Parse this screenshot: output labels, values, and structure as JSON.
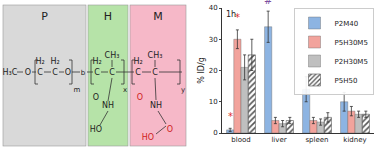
{
  "diagram": {
    "boxes": [
      {
        "label": "P",
        "color": "#d9d9d9"
      },
      {
        "label": "H",
        "color": "#b6e3a8"
      },
      {
        "label": "M",
        "color": "#f6b8c8"
      }
    ],
    "texts": [
      "H₃C",
      "O",
      "H₂",
      "C",
      "H₂",
      "C",
      "O",
      "m",
      "b",
      "H₂",
      "C",
      "CH₃",
      "C",
      "x",
      "O",
      "NH",
      "HO",
      "H₂",
      "C",
      "CH₃",
      "C",
      "y",
      "O",
      "NH",
      "O",
      "HO"
    ]
  },
  "chart_data": {
    "type": "bar",
    "panel_label": "1h",
    "ylabel": "% ID/g",
    "categories": [
      "blood",
      "liver",
      "spleen",
      "kidney"
    ],
    "series": [
      {
        "name": "P2M40",
        "color": "#8db4e2",
        "values": [
          1,
          34,
          14,
          10
        ],
        "errors": [
          0.5,
          5,
          4,
          3
        ]
      },
      {
        "name": "P5H30M5",
        "color": "#f2a39c",
        "values": [
          30,
          4,
          4,
          7
        ],
        "errors": [
          3,
          1,
          1,
          1.5
        ]
      },
      {
        "name": "P2H30M5",
        "color": "#bfbfbf",
        "values": [
          21,
          3,
          3.5,
          6
        ],
        "errors": [
          4,
          1,
          1,
          1
        ]
      },
      {
        "name": "P5H50",
        "color": "#555555",
        "marker": "hatched",
        "values": [
          25,
          4,
          5,
          6
        ],
        "errors": [
          5,
          1,
          1.5,
          1
        ]
      }
    ],
    "annotations": [
      {
        "text": "*",
        "category": "blood",
        "series": "P2M40",
        "y": 3,
        "color": "#e03030"
      },
      {
        "text": "*",
        "category": "blood",
        "series": "P5H30M5",
        "y": 34.5,
        "color": "#e03030"
      },
      {
        "text": "#",
        "category": "liver",
        "series": "P2M40",
        "y": 40,
        "color": "#7b4fa0"
      }
    ],
    "ylim": [
      0,
      40
    ],
    "yticks": [
      0,
      10,
      20,
      30,
      40
    ],
    "grid": false,
    "legend": "top right"
  }
}
